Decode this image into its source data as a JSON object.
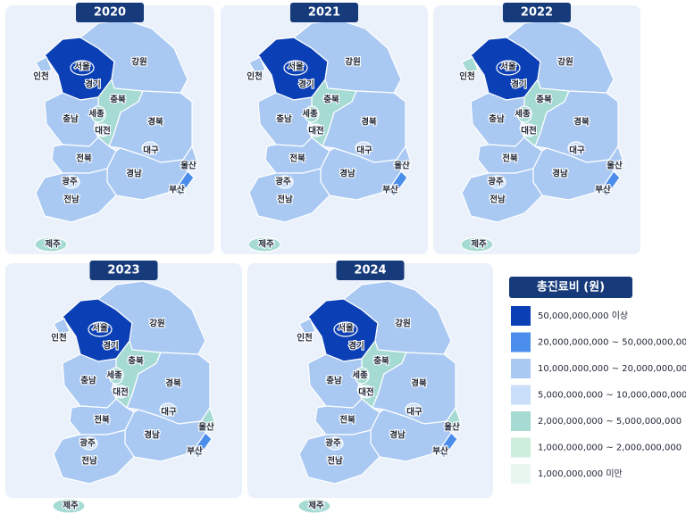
{
  "panels": [
    {
      "year": "2020",
      "regions": [
        {
          "name": "서울",
          "color": "#0b3fb5"
        },
        {
          "name": "경기",
          "color": "#0b3fb5"
        },
        {
          "name": "인천",
          "color": "#a9c9f3"
        },
        {
          "name": "강원",
          "color": "#a9c9f3"
        },
        {
          "name": "충북",
          "color": "#a6dbd3"
        },
        {
          "name": "충남",
          "color": "#a9c9f3"
        },
        {
          "name": "세종",
          "color": "#a6dbd3"
        },
        {
          "name": "대전",
          "color": "#c9def8"
        },
        {
          "name": "경북",
          "color": "#a9c9f3"
        },
        {
          "name": "대구",
          "color": "#c9def8"
        },
        {
          "name": "전북",
          "color": "#a9c9f3"
        },
        {
          "name": "울산",
          "color": "#a9c9f3"
        },
        {
          "name": "경남",
          "color": "#a9c9f3"
        },
        {
          "name": "부산",
          "color": "#4a8deb"
        },
        {
          "name": "광주",
          "color": "#c9def8"
        },
        {
          "name": "전남",
          "color": "#a9c9f3"
        },
        {
          "name": "제주",
          "color": "#a6dbd3"
        }
      ]
    },
    {
      "year": "2021",
      "regions": [
        {
          "name": "서울",
          "color": "#0b3fb5"
        },
        {
          "name": "경기",
          "color": "#0b3fb5"
        },
        {
          "name": "인천",
          "color": "#a9c9f3"
        },
        {
          "name": "강원",
          "color": "#a9c9f3"
        },
        {
          "name": "충북",
          "color": "#a6dbd3"
        },
        {
          "name": "충남",
          "color": "#a9c9f3"
        },
        {
          "name": "세종",
          "color": "#a6dbd3"
        },
        {
          "name": "대전",
          "color": "#c9def8"
        },
        {
          "name": "경북",
          "color": "#a9c9f3"
        },
        {
          "name": "대구",
          "color": "#c9def8"
        },
        {
          "name": "전북",
          "color": "#a9c9f3"
        },
        {
          "name": "울산",
          "color": "#a9c9f3"
        },
        {
          "name": "경남",
          "color": "#a9c9f3"
        },
        {
          "name": "부산",
          "color": "#4a8deb"
        },
        {
          "name": "광주",
          "color": "#c9def8"
        },
        {
          "name": "전남",
          "color": "#a9c9f3"
        },
        {
          "name": "제주",
          "color": "#a6dbd3"
        }
      ]
    },
    {
      "year": "2022",
      "regions": [
        {
          "name": "서울",
          "color": "#0b3fb5"
        },
        {
          "name": "경기",
          "color": "#0b3fb5"
        },
        {
          "name": "인천",
          "color": "#a6dbd3"
        },
        {
          "name": "강원",
          "color": "#a9c9f3"
        },
        {
          "name": "충북",
          "color": "#a6dbd3"
        },
        {
          "name": "충남",
          "color": "#a9c9f3"
        },
        {
          "name": "세종",
          "color": "#a6dbd3"
        },
        {
          "name": "대전",
          "color": "#c9def8"
        },
        {
          "name": "경북",
          "color": "#a9c9f3"
        },
        {
          "name": "대구",
          "color": "#c9def8"
        },
        {
          "name": "전북",
          "color": "#a9c9f3"
        },
        {
          "name": "울산",
          "color": "#a9c9f3"
        },
        {
          "name": "경남",
          "color": "#a9c9f3"
        },
        {
          "name": "부산",
          "color": "#4a8deb"
        },
        {
          "name": "광주",
          "color": "#c9def8"
        },
        {
          "name": "전남",
          "color": "#a9c9f3"
        },
        {
          "name": "제주",
          "color": "#a6dbd3"
        }
      ]
    },
    {
      "year": "2023",
      "regions": [
        {
          "name": "서울",
          "color": "#0b3fb5"
        },
        {
          "name": "경기",
          "color": "#0b3fb5"
        },
        {
          "name": "인천",
          "color": "#a9c9f3"
        },
        {
          "name": "강원",
          "color": "#a9c9f3"
        },
        {
          "name": "충북",
          "color": "#a6dbd3"
        },
        {
          "name": "충남",
          "color": "#a9c9f3"
        },
        {
          "name": "세종",
          "color": "#a6dbd3"
        },
        {
          "name": "대전",
          "color": "#c9def8"
        },
        {
          "name": "경북",
          "color": "#a9c9f3"
        },
        {
          "name": "대구",
          "color": "#c9def8"
        },
        {
          "name": "전북",
          "color": "#a9c9f3"
        },
        {
          "name": "울산",
          "color": "#a6dbd3"
        },
        {
          "name": "경남",
          "color": "#a9c9f3"
        },
        {
          "name": "부산",
          "color": "#4a8deb"
        },
        {
          "name": "광주",
          "color": "#c9def8"
        },
        {
          "name": "전남",
          "color": "#a9c9f3"
        },
        {
          "name": "제주",
          "color": "#a6dbd3"
        }
      ]
    },
    {
      "year": "2024",
      "regions": [
        {
          "name": "서울",
          "color": "#0b3fb5"
        },
        {
          "name": "경기",
          "color": "#0b3fb5"
        },
        {
          "name": "인천",
          "color": "#a9c9f3"
        },
        {
          "name": "강원",
          "color": "#a9c9f3"
        },
        {
          "name": "충북",
          "color": "#a6dbd3"
        },
        {
          "name": "충남",
          "color": "#a9c9f3"
        },
        {
          "name": "세종",
          "color": "#a6dbd3"
        },
        {
          "name": "대전",
          "color": "#c9def8"
        },
        {
          "name": "경북",
          "color": "#a9c9f3"
        },
        {
          "name": "대구",
          "color": "#c9def8"
        },
        {
          "name": "전북",
          "color": "#a9c9f3"
        },
        {
          "name": "울산",
          "color": "#a6dbd3"
        },
        {
          "name": "경남",
          "color": "#a9c9f3"
        },
        {
          "name": "부산",
          "color": "#4a8deb"
        },
        {
          "name": "광주",
          "color": "#c9def8"
        },
        {
          "name": "전남",
          "color": "#a9c9f3"
        },
        {
          "name": "제주",
          "color": "#a6dbd3"
        }
      ]
    }
  ],
  "legend": {
    "title": "총진료비 (원)",
    "items": [
      {
        "label": "50,000,000,000 이상",
        "color": "#0b3fb5"
      },
      {
        "label": "20,000,000,000 ~ 50,000,000,000",
        "color": "#4a8deb"
      },
      {
        "label": "10,000,000,000 ~ 20,000,000,000",
        "color": "#a9c9f3"
      },
      {
        "label": "5,000,000,000 ~ 10,000,000,000",
        "color": "#c9def8"
      },
      {
        "label": "2,000,000,000 ~ 5,000,000,000",
        "color": "#a6dbd3"
      },
      {
        "label": "1,000,000,000 ~ 2,000,000,000",
        "color": "#cdeedd"
      },
      {
        "label": "1,000,000,000 미만",
        "color": "#e9f6ef"
      }
    ]
  }
}
